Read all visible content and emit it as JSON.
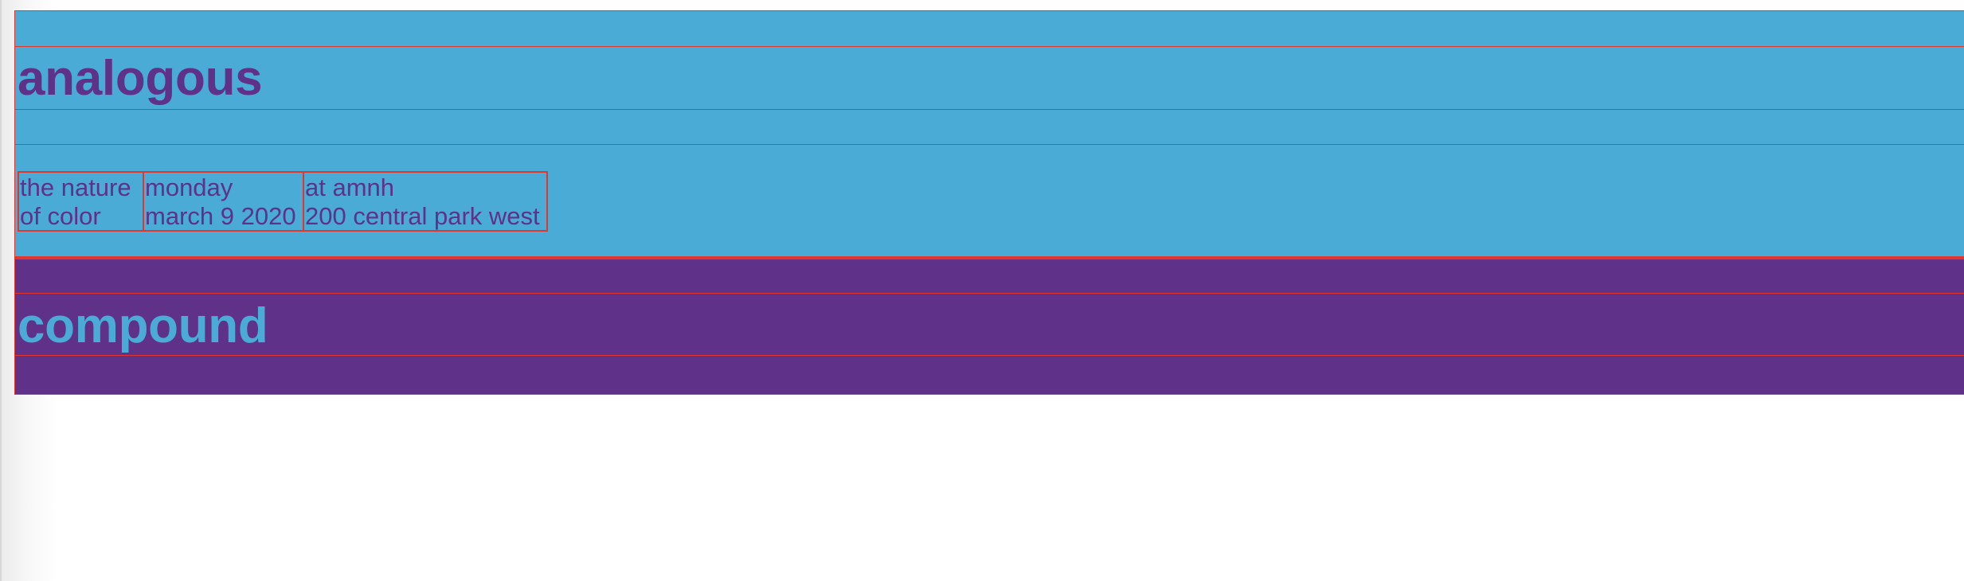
{
  "colors": {
    "blue": "#4aabd6",
    "purple": "#5f3189",
    "outline_red": "#e0362e",
    "background": "#ffffff"
  },
  "sections": {
    "analogous": {
      "title": "analogous",
      "info": [
        {
          "line1": "the nature",
          "line2": "of color"
        },
        {
          "line1": "monday",
          "line2": "march 9 2020"
        },
        {
          "line1": "at amnh",
          "line2": "200 central park west"
        }
      ]
    },
    "compound": {
      "title": "compound"
    }
  }
}
